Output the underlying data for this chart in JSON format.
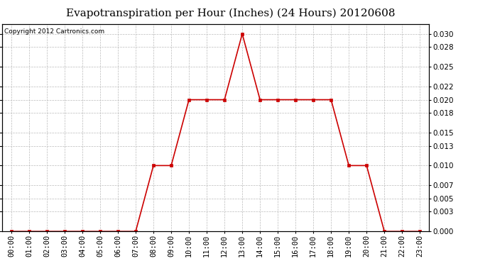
{
  "title": "Evapotranspiration per Hour (Inches) (24 Hours) 20120608",
  "copyright": "Copyright 2012 Cartronics.com",
  "hours": [
    0,
    1,
    2,
    3,
    4,
    5,
    6,
    7,
    8,
    9,
    10,
    11,
    12,
    13,
    14,
    15,
    16,
    17,
    18,
    19,
    20,
    21,
    22,
    23
  ],
  "values": [
    0.0,
    0.0,
    0.0,
    0.0,
    0.0,
    0.0,
    0.0,
    0.0,
    0.01,
    0.01,
    0.02,
    0.02,
    0.02,
    0.03,
    0.02,
    0.02,
    0.02,
    0.02,
    0.02,
    0.01,
    0.01,
    0.0,
    0.0,
    0.0
  ],
  "line_color": "#cc0000",
  "marker": "s",
  "marker_size": 2.5,
  "background_color": "#ffffff",
  "plot_bg_color": "#ffffff",
  "grid_color": "#bbbbbb",
  "title_fontsize": 11,
  "tick_label_fontsize": 7.5,
  "copyright_fontsize": 6.5,
  "ylim": [
    0,
    0.0315
  ],
  "yticks": [
    0.0,
    0.003,
    0.005,
    0.007,
    0.01,
    0.013,
    0.015,
    0.018,
    0.02,
    0.022,
    0.025,
    0.028,
    0.03
  ]
}
